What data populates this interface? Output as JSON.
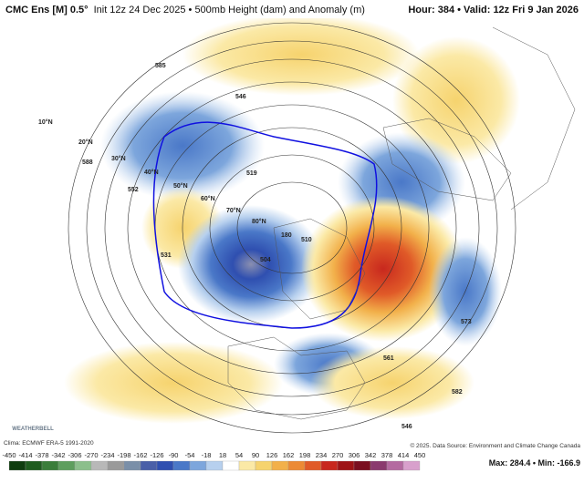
{
  "header": {
    "model": "CMC Ens [M] 0.5°",
    "description": "Init 12z 24 Dec 2025 • 500mb Height (dam) and Anomaly (m)",
    "valid": "Hour: 384 • Valid: 12z Fri 9 Jan 2026"
  },
  "map": {
    "latitude_labels": [
      "10°N",
      "20°N",
      "30°N",
      "40°N",
      "50°N",
      "60°N",
      "70°N",
      "80°N"
    ],
    "contour_labels": [
      "585",
      "588",
      "552",
      "546",
      "519",
      "531",
      "504",
      "180",
      "510",
      "573",
      "561",
      "582",
      "546"
    ]
  },
  "footer": {
    "climatology": "Clima: ECMWF ERA-5 1991-2020",
    "credit": "© 2025. Data Source: Environment and Climate Change Canada",
    "stats": "Max: 284.4 • Min: -166.9",
    "logo": "WEATHERBELL"
  },
  "colorbar": {
    "ticks": [
      -450,
      -414,
      -378,
      -342,
      -306,
      -270,
      -234,
      -198,
      -162,
      -126,
      -90,
      -54,
      -18,
      18,
      54,
      90,
      126,
      162,
      198,
      234,
      270,
      306,
      342,
      378,
      414,
      450
    ],
    "colors": [
      "#0f3d0f",
      "#1f5c1f",
      "#3a7d3a",
      "#5e9e5e",
      "#8cbf8c",
      "#b8b8b8",
      "#9a9a9a",
      "#7a8fa8",
      "#4a5fa8",
      "#2f4fb0",
      "#4a78c8",
      "#7da6dc",
      "#b7d0ee",
      "#ffffff",
      "#fbe9a6",
      "#f6d36e",
      "#f2b04a",
      "#ec8a35",
      "#e05a28",
      "#c8281e",
      "#9e1416",
      "#7a1020",
      "#8a3a6e",
      "#b46aa0",
      "#d8a0cc"
    ]
  }
}
